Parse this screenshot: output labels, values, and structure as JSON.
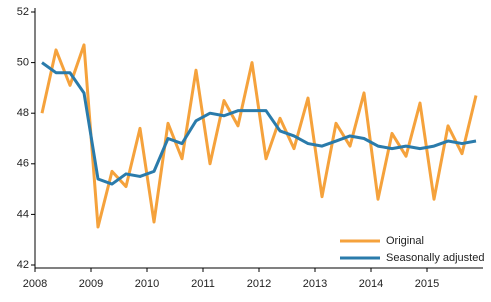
{
  "chart_data": {
    "type": "line",
    "x": [
      2008.125,
      2008.375,
      2008.625,
      2008.875,
      2009.125,
      2009.375,
      2009.625,
      2009.875,
      2010.125,
      2010.375,
      2010.625,
      2010.875,
      2011.125,
      2011.375,
      2011.625,
      2011.875,
      2012.125,
      2012.375,
      2012.625,
      2012.875,
      2013.125,
      2013.375,
      2013.625,
      2013.875,
      2014.125,
      2014.375,
      2014.625,
      2014.875,
      2015.125,
      2015.375,
      2015.625,
      2015.875
    ],
    "series": [
      {
        "name": "Original",
        "color": "#f5a23c",
        "values": [
          48.0,
          50.5,
          49.1,
          50.7,
          43.5,
          45.7,
          45.1,
          47.4,
          43.7,
          47.6,
          46.2,
          49.7,
          46.0,
          48.5,
          47.5,
          50.0,
          46.2,
          47.8,
          46.6,
          48.6,
          44.7,
          47.6,
          46.7,
          48.8,
          44.6,
          47.2,
          46.3,
          48.4,
          44.6,
          47.5,
          46.4,
          48.7
        ]
      },
      {
        "name": "Seasonally adjusted",
        "color": "#2a7bab",
        "values": [
          50.0,
          49.6,
          49.6,
          48.8,
          45.4,
          45.2,
          45.6,
          45.5,
          45.7,
          47.0,
          46.8,
          47.7,
          48.0,
          47.9,
          48.1,
          48.1,
          48.1,
          47.3,
          47.1,
          46.8,
          46.7,
          46.9,
          47.1,
          47.0,
          46.7,
          46.6,
          46.7,
          46.6,
          46.7,
          46.9,
          46.8,
          46.9
        ]
      }
    ],
    "xlim": [
      2008,
      2016
    ],
    "xticks": [
      2008,
      2009,
      2010,
      2011,
      2012,
      2013,
      2014,
      2015
    ],
    "ylim": [
      42,
      52
    ],
    "yticks": [
      42,
      44,
      46,
      48,
      50,
      52
    ],
    "grid": false,
    "legend": "bottom-right"
  }
}
